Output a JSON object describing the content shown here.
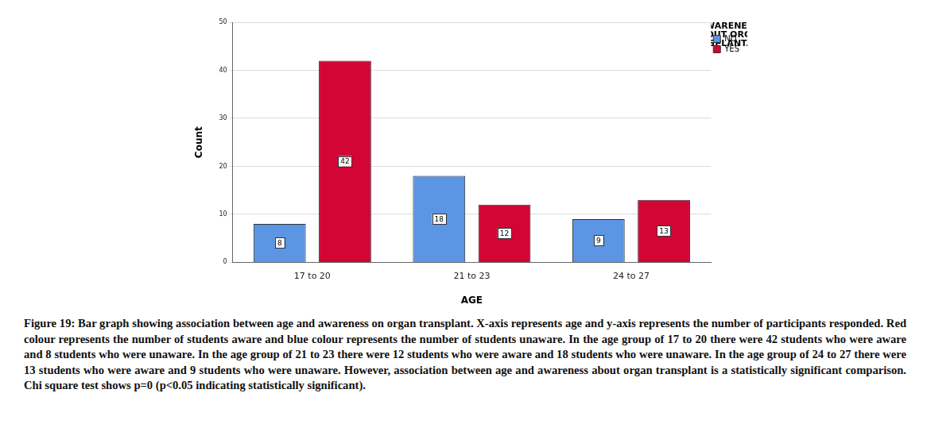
{
  "chart_data": {
    "type": "bar",
    "categories": [
      "17 to 20",
      "21 to 23",
      "24 to 27"
    ],
    "series": [
      {
        "name": "NO",
        "color": "#5b95e3",
        "values": [
          8,
          18,
          9
        ]
      },
      {
        "name": "YES",
        "color": "#d20535",
        "values": [
          42,
          12,
          13
        ]
      }
    ],
    "x_label": "AGE",
    "y_label": "Count",
    "legend_title": "AWARENESS ABOUT ORGAN TRANSPLANTATION",
    "legend": "top-right",
    "ylim": [
      0,
      50
    ],
    "yticks": [
      0,
      10,
      20,
      30,
      40,
      50
    ],
    "grid": true,
    "data_labels": true,
    "caption": "Figure 19:  Bar graph showing association between age and awareness on organ transplant. X-axis represents age and y-axis represents the number of participants responded. Red colour represents the number of students aware and blue colour represents the number of students unaware.  In the age group of 17 to 20 there were 42 students who were aware and 8 students who were unaware. In the age group of 21 to 23 there were 12 students who were aware and 18 students who were unaware. In the age group of 24 to 27 there were 13 students who were aware and 9 students who were unaware. However, association between age and awareness about organ transplant is a statistically significant comparison. Chi square test shows p=0 (p<0.05 indicating statistically significant)."
  }
}
